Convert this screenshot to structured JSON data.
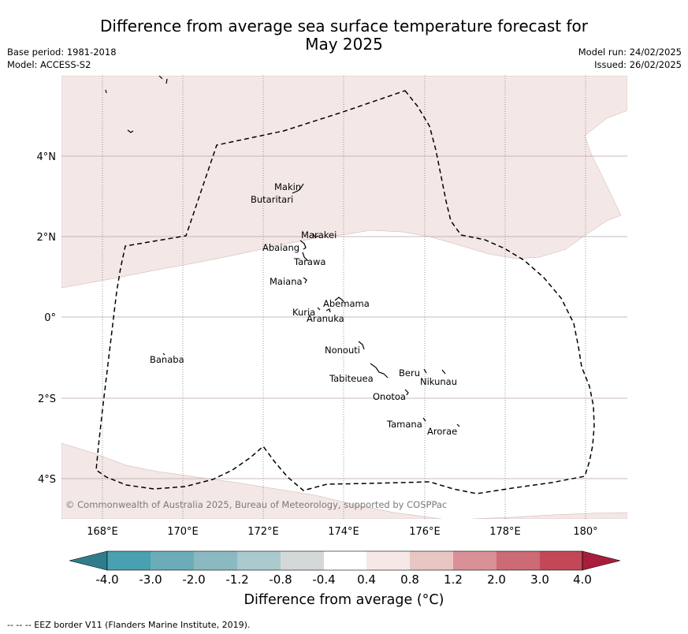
{
  "header": {
    "title_line1": "Difference from average sea surface temperature forecast for",
    "title_line2": "May 2025",
    "base_period": "Base period: 1981-2018",
    "model": "Model: ACCESS-S2",
    "model_run": "Model run: 24/02/2025",
    "issued": "Issued: 26/02/2025"
  },
  "map": {
    "longitude_ticks": [
      "168°E",
      "170°E",
      "172°E",
      "174°E",
      "176°E",
      "178°E",
      "180°"
    ],
    "latitude_ticks": [
      "4°N",
      "2°N",
      "0°",
      "2°S",
      "4°S"
    ],
    "islands": [
      "Makin",
      "Butaritari",
      "Marakei",
      "Abaiang",
      "Tarawa",
      "Maiana",
      "Abemama",
      "Kuria",
      "Aranuka",
      "Nonouti",
      "Banaba",
      "Beru",
      "Nikunau",
      "Tabiteuea",
      "Onotoa",
      "Tamana",
      "Arorae"
    ],
    "copyright": "© Commonwealth of Australia 2025, Bureau of Meteorology, supported by COSPPac",
    "colors": {
      "shaded_anomaly": "#f4e8e7",
      "ocean_neutral": "#ffffff",
      "eez_border": "#000000"
    }
  },
  "colorbar": {
    "labels": [
      "-4.0",
      "-3.0",
      "-2.0",
      "-1.2",
      "-0.8",
      "-0.4",
      "0.4",
      "0.8",
      "1.2",
      "2.0",
      "3.0",
      "4.0"
    ],
    "colors": [
      "#2f7d8c",
      "#48a0b0",
      "#6bacb8",
      "#8ab9c2",
      "#aacacd",
      "#d5d8d9",
      "#ffffff",
      "#f5e8e6",
      "#e8c6c3",
      "#d99096",
      "#cc6a75",
      "#c24858",
      "#a91d3c"
    ],
    "title": "Difference from average (°C)"
  },
  "footer": {
    "legend": "--  --  -- EEZ border V11 (Flanders Marine Institute, 2019)."
  }
}
